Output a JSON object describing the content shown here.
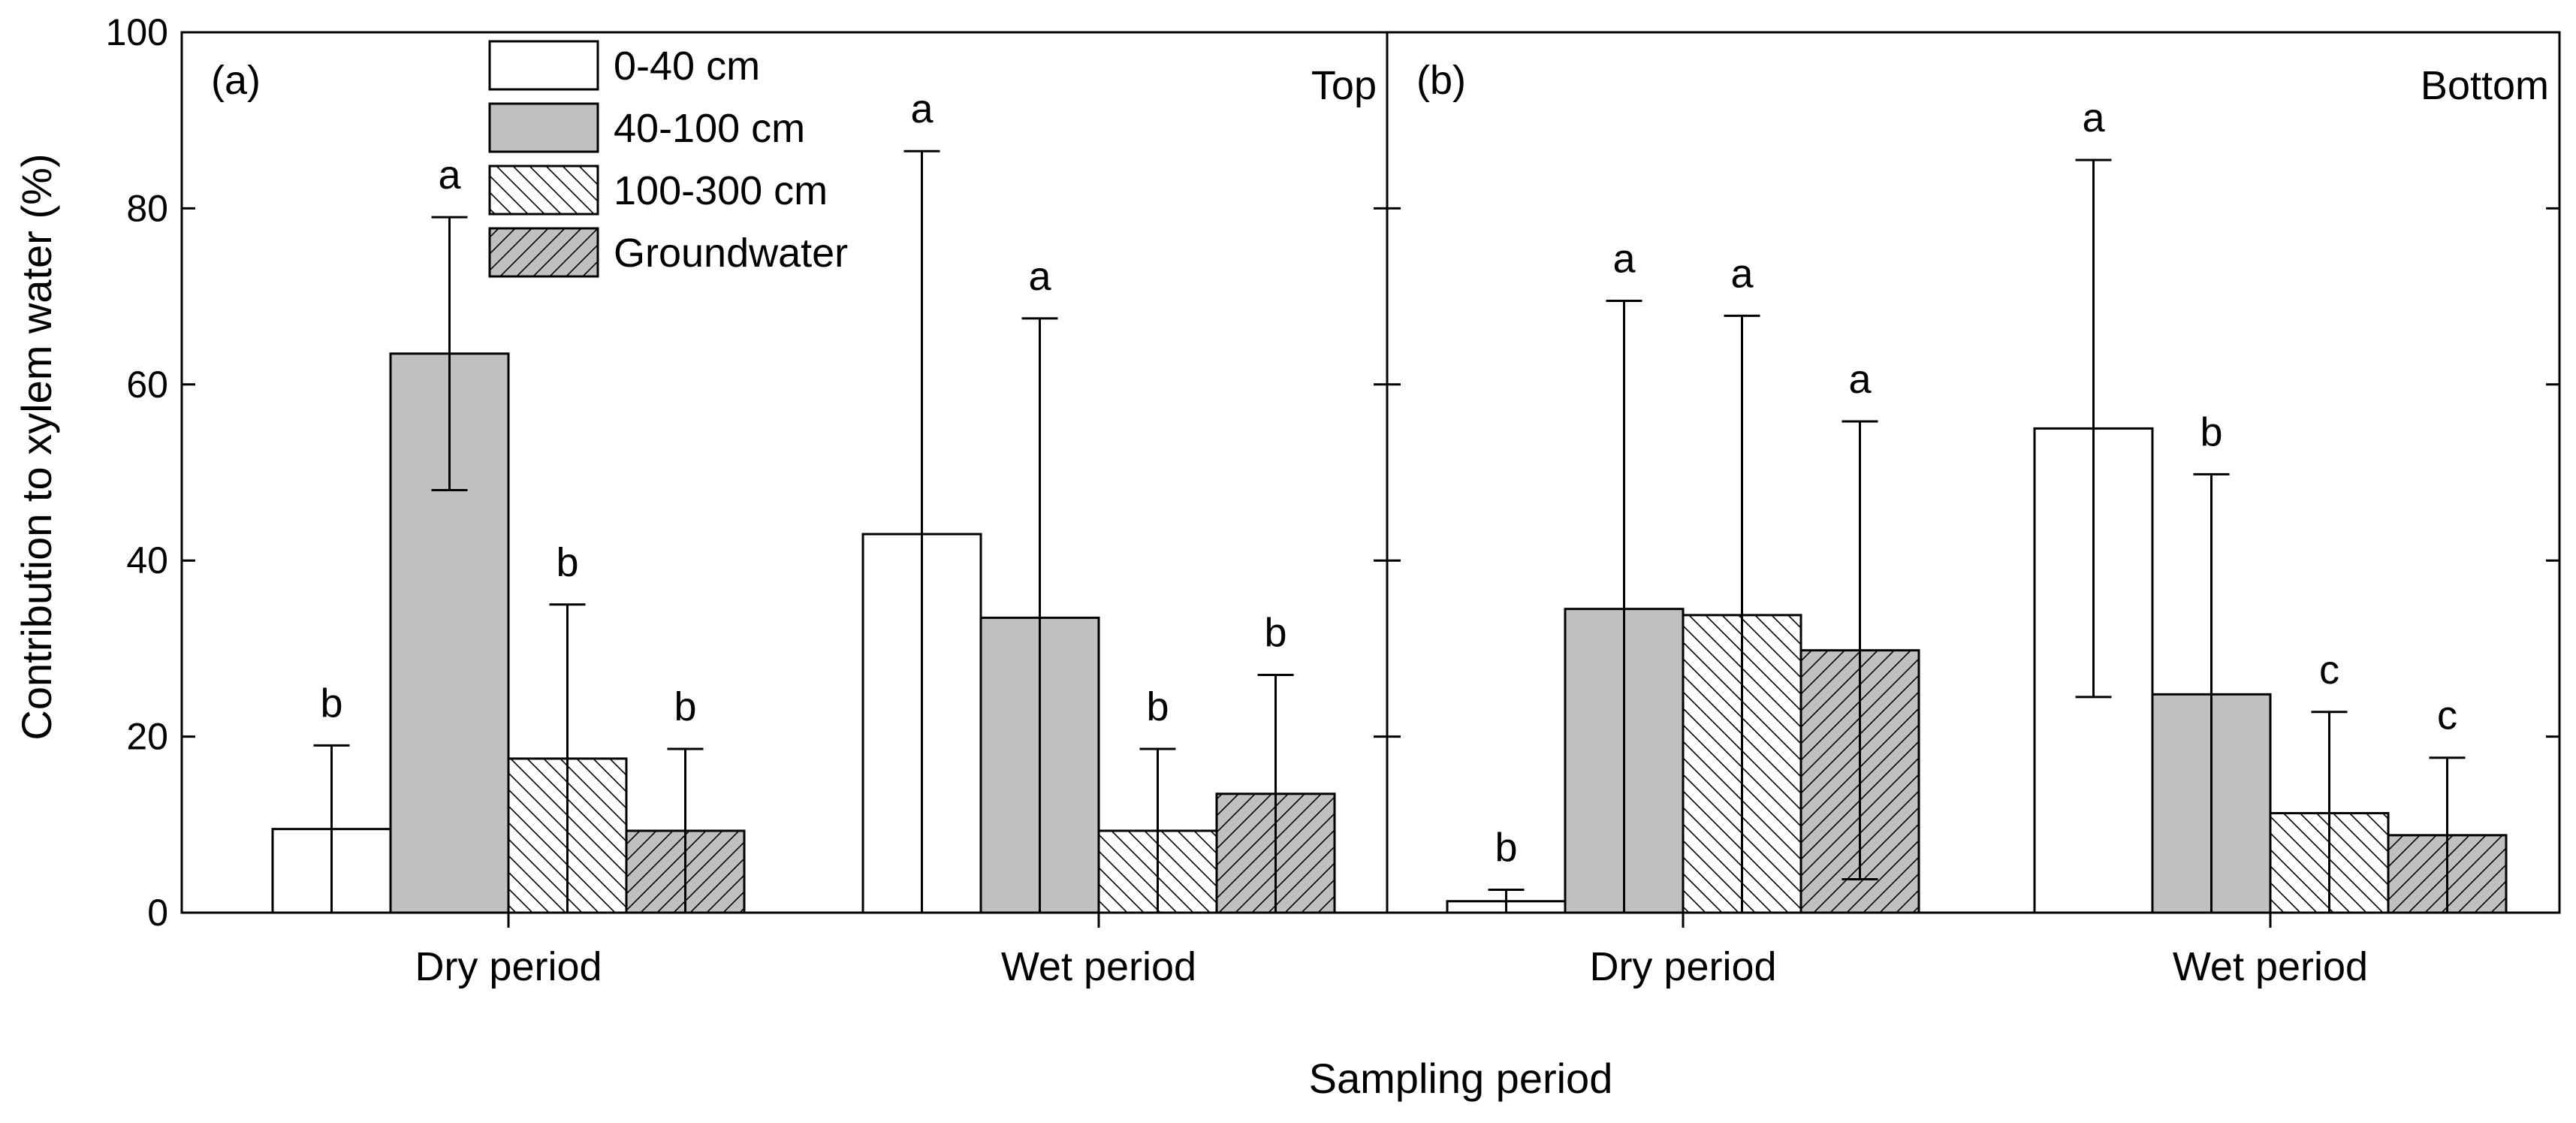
{
  "chart_data": {
    "type": "bar",
    "ylabel": "Contribution to xylem water (%)",
    "xlabel": "Sampling period",
    "ylim": [
      0,
      100
    ],
    "yticks": [
      0,
      20,
      40,
      60,
      80,
      100
    ],
    "categories": [
      "Dry period",
      "Wet period"
    ],
    "legend": {
      "placement": "top-left of panel (a)",
      "entries": [
        "0-40 cm",
        "40-100 cm",
        "100-300 cm",
        "Groundwater"
      ]
    },
    "series_styles": [
      {
        "name": "0-40 cm",
        "fill": "#ffffff",
        "pattern": "none"
      },
      {
        "name": "40-100 cm",
        "fill": "#c0c0c0",
        "pattern": "none"
      },
      {
        "name": "100-300 cm",
        "fill": "#ffffff",
        "pattern": "backslash-hatch"
      },
      {
        "name": "Groundwater",
        "fill": "#c0c0c0",
        "pattern": "slash-hatch"
      }
    ],
    "panels": [
      {
        "label": "(a)",
        "title": "Top",
        "series": [
          {
            "name": "0-40 cm",
            "values": [
              9.5,
              43
            ],
            "errors": [
              9.5,
              43.5
            ],
            "letters": [
              "b",
              "a"
            ]
          },
          {
            "name": "40-100 cm",
            "values": [
              63.5,
              33.5
            ],
            "errors": [
              15.5,
              34
            ],
            "letters": [
              "a",
              "a"
            ]
          },
          {
            "name": "100-300 cm",
            "values": [
              17.5,
              9.3
            ],
            "errors": [
              17.5,
              9.3
            ],
            "letters": [
              "b",
              "b"
            ]
          },
          {
            "name": "Groundwater",
            "values": [
              9.3,
              13.5
            ],
            "errors": [
              9.3,
              13.5
            ],
            "letters": [
              "b",
              "b"
            ]
          }
        ]
      },
      {
        "label": "(b)",
        "title": "Bottom",
        "series": [
          {
            "name": "0-40 cm",
            "values": [
              1.3,
              55
            ],
            "errors": [
              1.3,
              30.5
            ],
            "letters": [
              "b",
              "a"
            ]
          },
          {
            "name": "40-100 cm",
            "values": [
              34.5,
              24.8
            ],
            "errors": [
              35,
              25
            ],
            "letters": [
              "a",
              "b"
            ]
          },
          {
            "name": "100-300 cm",
            "values": [
              33.8,
              11.3
            ],
            "errors": [
              34,
              11.5
            ],
            "letters": [
              "a",
              "c"
            ]
          },
          {
            "name": "Groundwater",
            "values": [
              29.8,
              8.8
            ],
            "errors": [
              26,
              8.8
            ],
            "letters": [
              "a",
              "c"
            ]
          }
        ]
      }
    ]
  }
}
